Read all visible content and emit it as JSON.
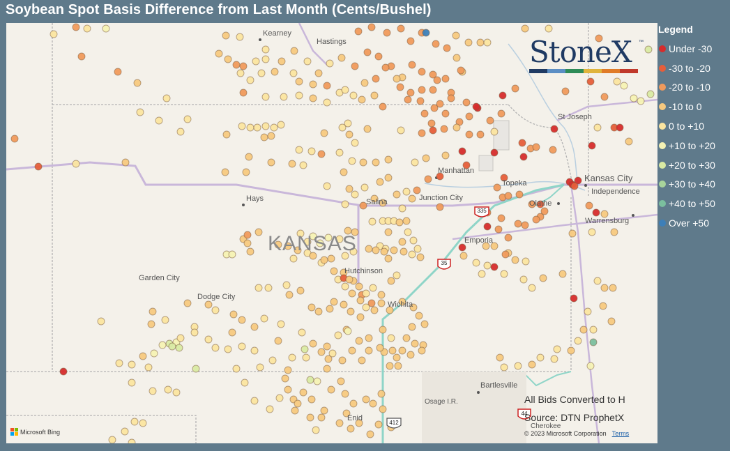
{
  "title": "Soybean Spot Basis Difference from Last Month (Cents/Bushel)",
  "legend": {
    "title": "Legend",
    "items": [
      {
        "label": "Under -30",
        "color": "#d62c2c"
      },
      {
        "label": "-30 to -20",
        "color": "#e65e3a"
      },
      {
        "label": "-20 to -10",
        "color": "#f09a5c"
      },
      {
        "label": "-10 to 0",
        "color": "#f7c97f"
      },
      {
        "label": "0 to +10",
        "color": "#fbe5a0"
      },
      {
        "label": "+10 to +20",
        "color": "#f5f2b4"
      },
      {
        "label": "+20 to +30",
        "color": "#d9eaa3"
      },
      {
        "label": "+30 to +40",
        "color": "#a8d49b"
      },
      {
        "label": "+40 to +50",
        "color": "#7bbf9e"
      },
      {
        "label": "Over +50",
        "color": "#3d7fb8"
      }
    ]
  },
  "map": {
    "state_label": "KANSAS",
    "cities": [
      "Kearney",
      "Hastings",
      "St Joseph",
      "Manhattan",
      "Topeka",
      "Kansas City",
      "Independence",
      "Olathe",
      "Hays",
      "Salina",
      "Junction City",
      "Emporia",
      "Warrensburg",
      "Garden City",
      "Dodge City",
      "Hutchinson",
      "Wichita",
      "Bartlesville",
      "Osage I.R.",
      "Enid",
      "Cherokee"
    ],
    "highway_shields": [
      "335",
      "35",
      "412",
      "44"
    ]
  },
  "logo": {
    "text": "StoneX",
    "tm": "™",
    "colors": [
      "#1f3a63",
      "#5b8ec4",
      "#2e8b57",
      "#e0b43c",
      "#e07b28",
      "#c0392b"
    ]
  },
  "notes": {
    "line1": "All Bids Converted to H",
    "line2": "Source: DTN ProphetX"
  },
  "attribution": {
    "bing": "Microsoft Bing",
    "copyright": "© 2023 Microsoft Corporation",
    "terms": "Terms"
  }
}
